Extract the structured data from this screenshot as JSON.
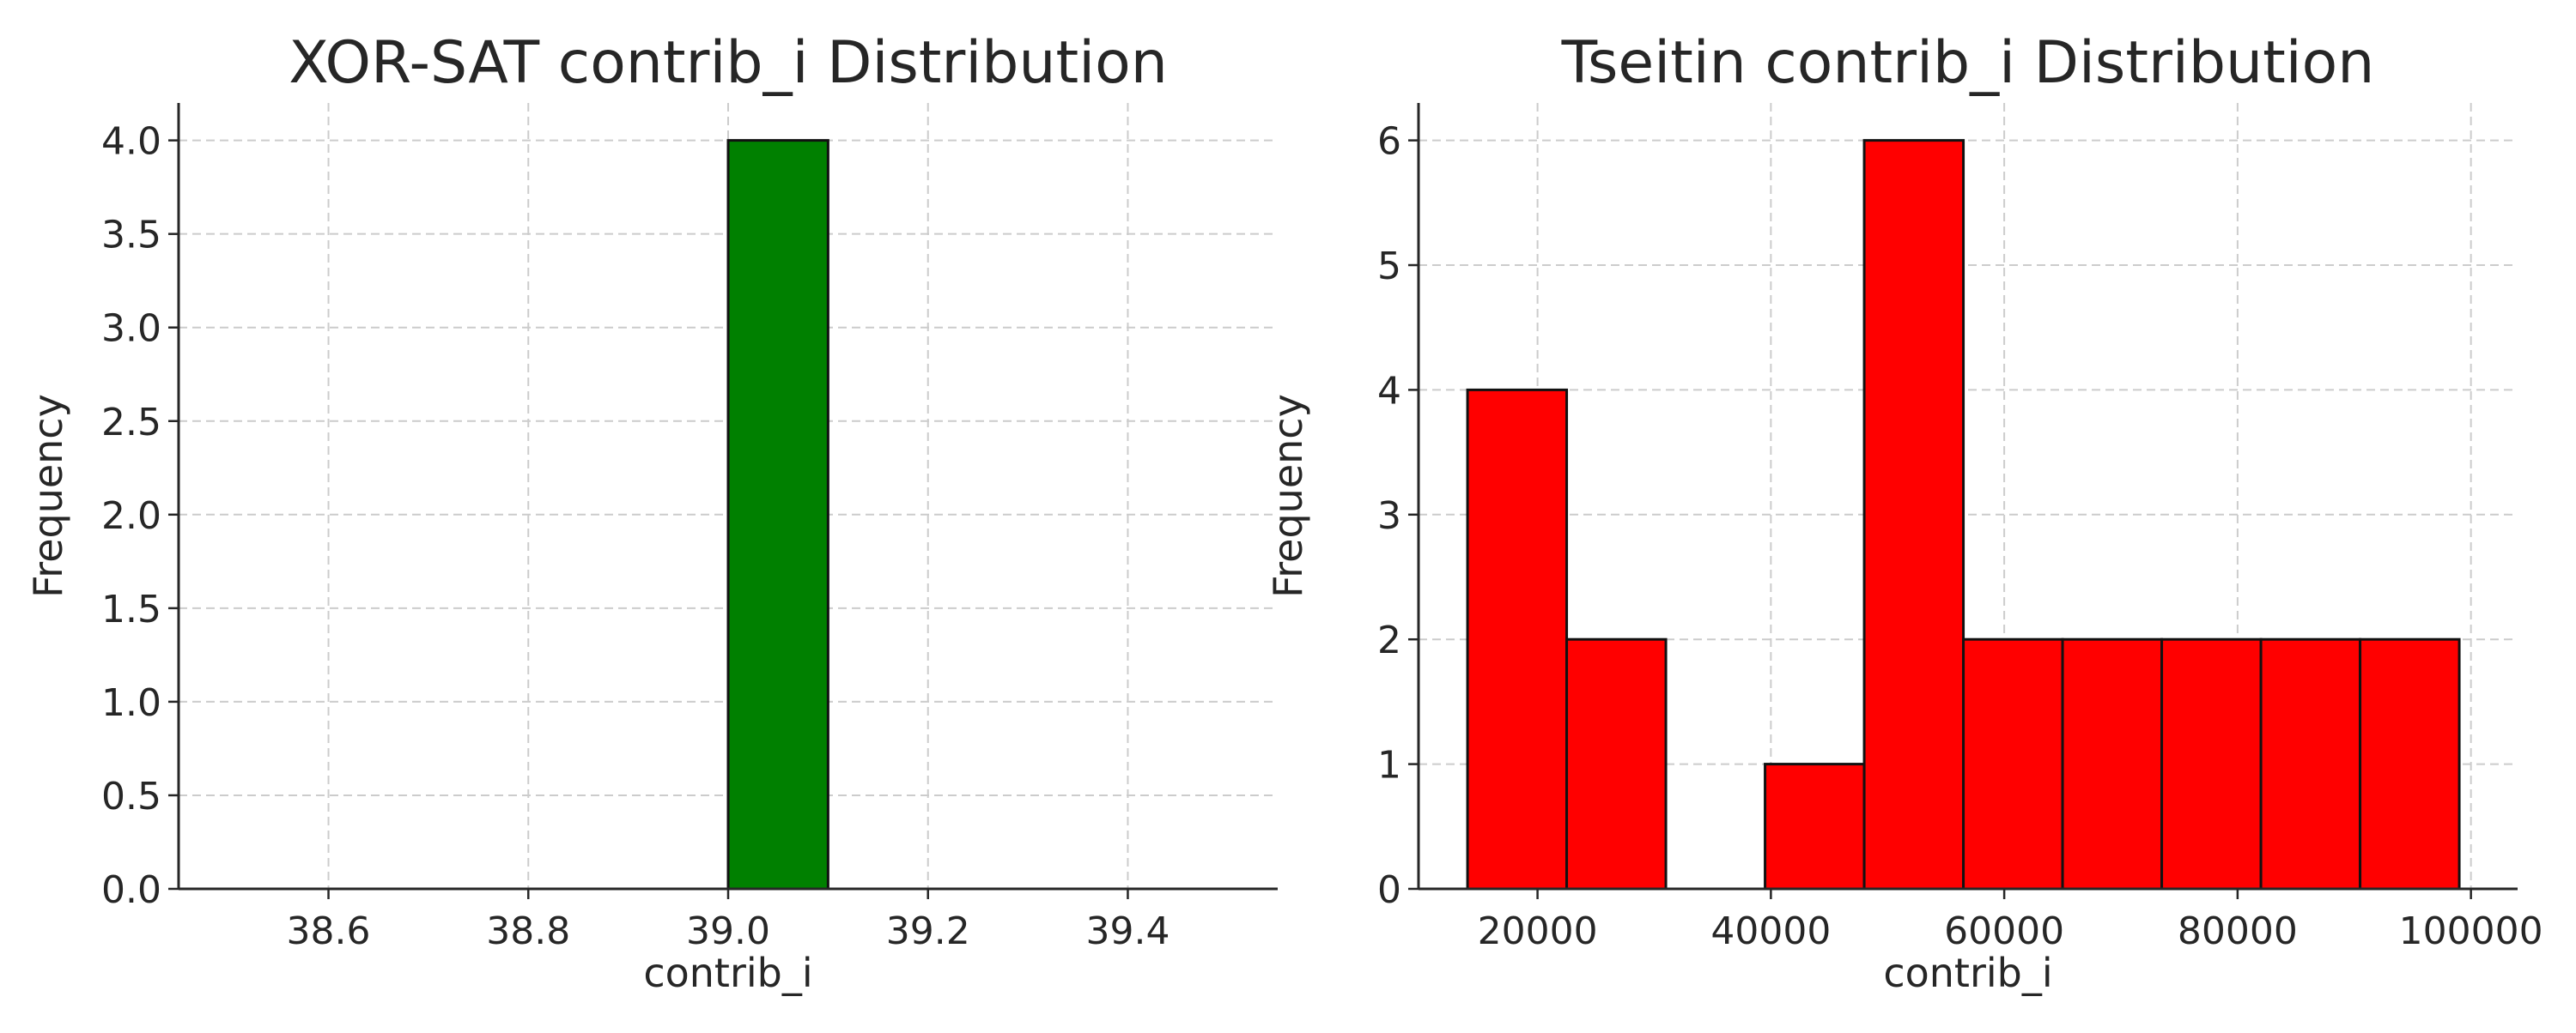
{
  "chart_data": [
    {
      "type": "bar",
      "title": "XOR-SAT contrib_i Distribution",
      "xlabel": "contrib_i",
      "ylabel": "Frequency",
      "color": "#008000",
      "xlim": [
        38.45,
        39.55
      ],
      "ylim": [
        0,
        4.2
      ],
      "xticks": [
        38.6,
        38.8,
        39.0,
        39.2,
        39.4
      ],
      "xtick_labels": [
        "38.6",
        "38.8",
        "39.0",
        "39.2",
        "39.4"
      ],
      "yticks": [
        0,
        0.5,
        1.0,
        1.5,
        2.0,
        2.5,
        3.0,
        3.5,
        4.0
      ],
      "ytick_labels": [
        "0.0",
        "0.5",
        "1.0",
        "1.5",
        "2.0",
        "2.5",
        "3.0",
        "3.5",
        "4.0"
      ],
      "grid": true,
      "bins": [
        {
          "start": 39.0,
          "end": 39.1,
          "value": 4
        }
      ]
    },
    {
      "type": "bar",
      "title": "Tseitin contrib_i Distribution",
      "xlabel": "contrib_i",
      "ylabel": "Frequency",
      "color": "#ff0000",
      "xlim": [
        9800,
        104000
      ],
      "ylim": [
        0,
        6.3
      ],
      "xticks": [
        20000,
        40000,
        60000,
        80000,
        100000
      ],
      "xtick_labels": [
        "20000",
        "40000",
        "60000",
        "80000",
        "100000"
      ],
      "yticks": [
        0,
        1,
        2,
        3,
        4,
        5,
        6
      ],
      "ytick_labels": [
        "0",
        "1",
        "2",
        "3",
        "4",
        "5",
        "6"
      ],
      "grid": true,
      "bins": [
        {
          "start": 14000,
          "end": 22500,
          "value": 4
        },
        {
          "start": 22500,
          "end": 31000,
          "value": 2
        },
        {
          "start": 31000,
          "end": 39500,
          "value": 0
        },
        {
          "start": 39500,
          "end": 48000,
          "value": 1
        },
        {
          "start": 48000,
          "end": 56500,
          "value": 6
        },
        {
          "start": 56500,
          "end": 65000,
          "value": 2
        },
        {
          "start": 65000,
          "end": 73500,
          "value": 2
        },
        {
          "start": 73500,
          "end": 82000,
          "value": 2
        },
        {
          "start": 82000,
          "end": 90500,
          "value": 2
        },
        {
          "start": 90500,
          "end": 99000,
          "value": 2
        }
      ]
    }
  ]
}
